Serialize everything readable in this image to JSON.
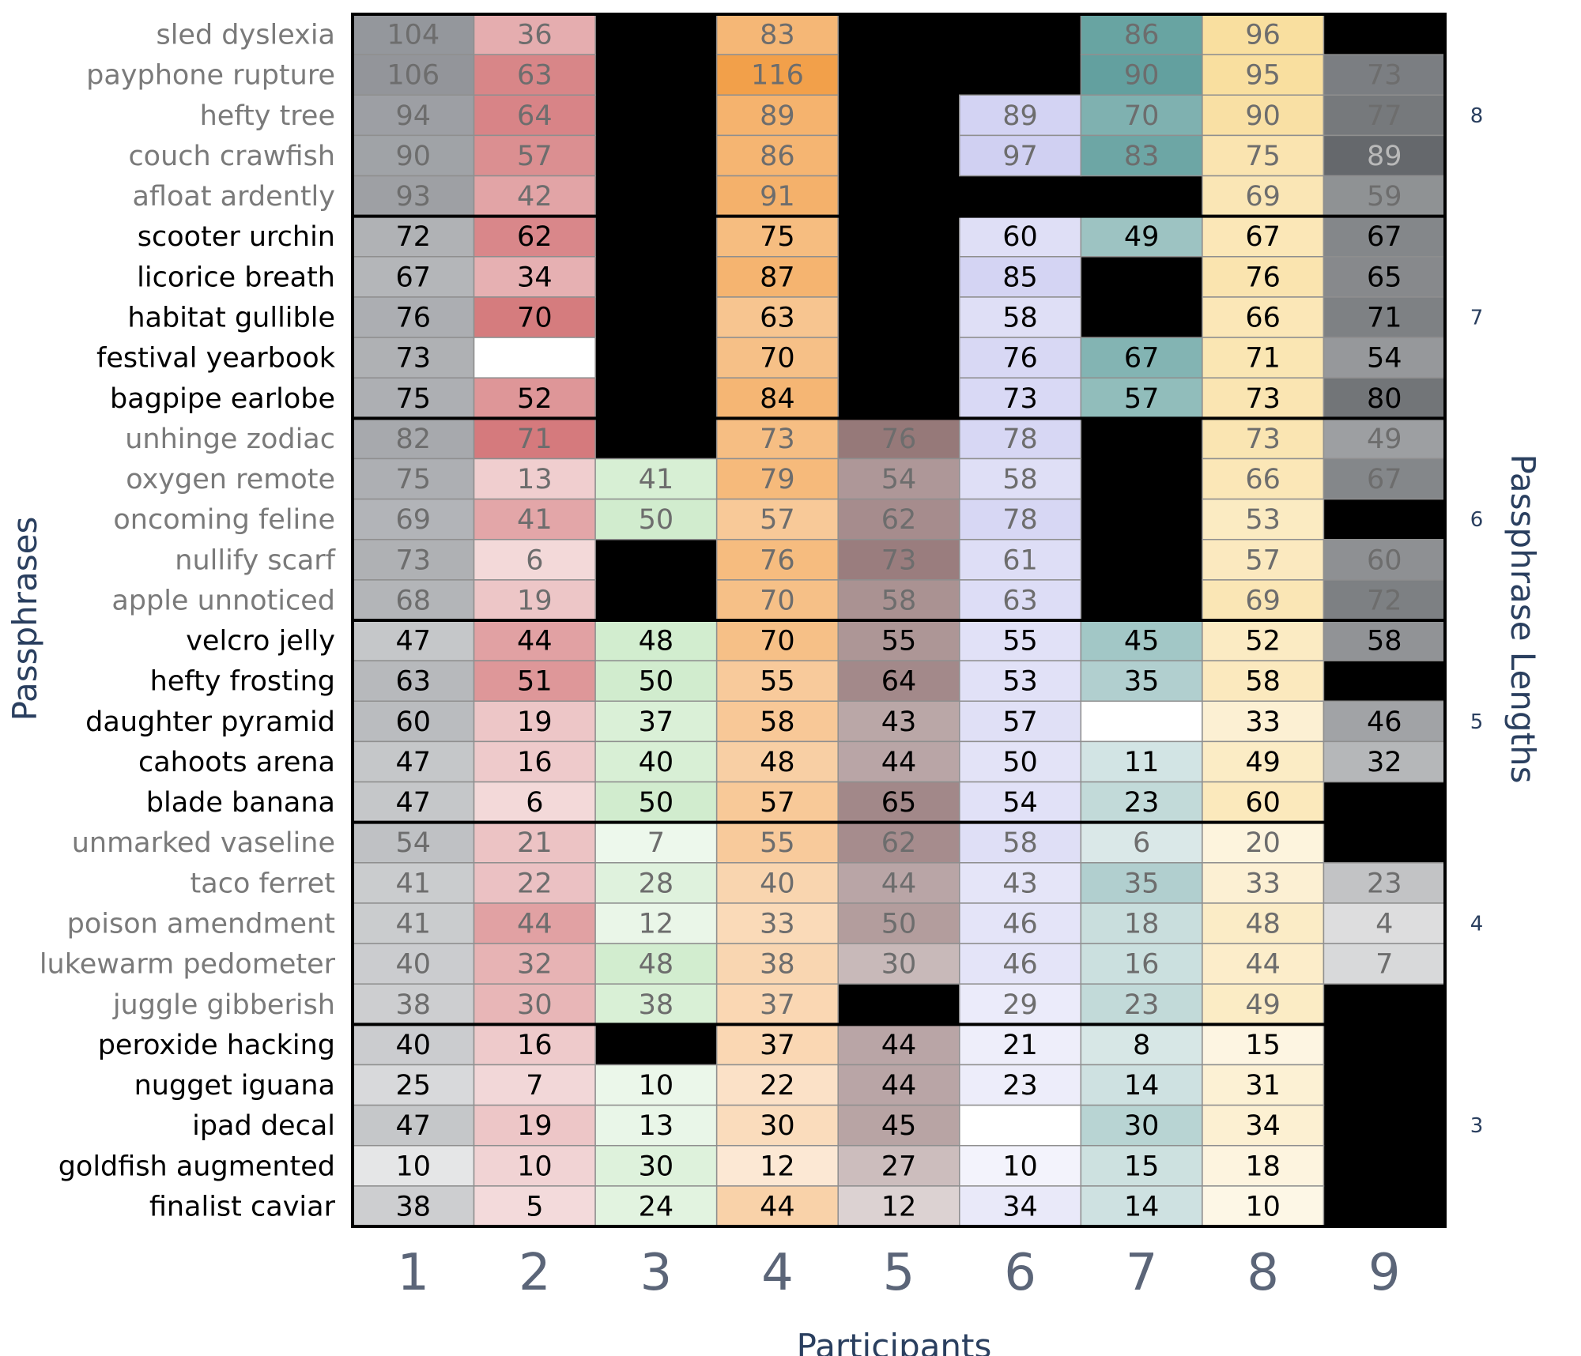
{
  "chart_data": {
    "type": "heatmap",
    "xlabel": "Participants",
    "ylabel": "Passphrases",
    "y2label": "Passphrase Lengths",
    "columns": [
      "1",
      "2",
      "3",
      "4",
      "5",
      "6",
      "7",
      "8",
      "9"
    ],
    "column_colors": [
      "#8a8d92",
      "#c0393d",
      "#a6dba0",
      "#f2a04a",
      "#6b4142",
      "#c8c8f0",
      "#3e8a88",
      "#f8d98e",
      "#3f4348"
    ],
    "missing_color": "#000000",
    "value_max": 116,
    "groups": [
      {
        "length": "8",
        "rows": [
          {
            "label": "sled dyslexia",
            "values": [
              104,
              36,
              null,
              83,
              null,
              null,
              86,
              96,
              null
            ]
          },
          {
            "label": "payphone rupture",
            "values": [
              106,
              63,
              null,
              116,
              null,
              null,
              90,
              95,
              73
            ]
          },
          {
            "label": "hefty tree",
            "values": [
              94,
              64,
              null,
              89,
              null,
              89,
              70,
              90,
              77
            ]
          },
          {
            "label": "couch crawfish",
            "values": [
              90,
              57,
              null,
              86,
              null,
              97,
              83,
              75,
              89
            ]
          },
          {
            "label": "afloat ardently",
            "values": [
              93,
              42,
              null,
              91,
              null,
              null,
              null,
              69,
              59
            ]
          }
        ]
      },
      {
        "length": "7",
        "rows": [
          {
            "label": "scooter urchin",
            "values": [
              72,
              62,
              null,
              75,
              null,
              60,
              49,
              67,
              67
            ]
          },
          {
            "label": "licorice breath",
            "values": [
              67,
              34,
              null,
              87,
              null,
              85,
              null,
              76,
              65
            ]
          },
          {
            "label": "habitat gullible",
            "values": [
              76,
              70,
              null,
              63,
              null,
              58,
              null,
              66,
              71
            ]
          },
          {
            "label": "festival yearbook",
            "values": [
              73,
              0,
              null,
              70,
              null,
              76,
              67,
              71,
              54
            ]
          },
          {
            "label": "bagpipe earlobe",
            "values": [
              75,
              52,
              null,
              84,
              null,
              73,
              57,
              73,
              80
            ]
          }
        ]
      },
      {
        "length": "6",
        "rows": [
          {
            "label": "unhinge zodiac",
            "values": [
              82,
              71,
              null,
              73,
              76,
              78,
              null,
              73,
              49
            ]
          },
          {
            "label": "oxygen remote",
            "values": [
              75,
              13,
              41,
              79,
              54,
              58,
              null,
              66,
              67
            ]
          },
          {
            "label": "oncoming feline",
            "values": [
              69,
              41,
              50,
              57,
              62,
              78,
              null,
              53,
              null
            ]
          },
          {
            "label": "nullify scarf",
            "values": [
              73,
              6,
              null,
              76,
              73,
              61,
              null,
              57,
              60
            ]
          },
          {
            "label": "apple unnoticed",
            "values": [
              68,
              19,
              null,
              70,
              58,
              63,
              null,
              69,
              72
            ]
          }
        ]
      },
      {
        "length": "5",
        "rows": [
          {
            "label": "velcro jelly",
            "values": [
              47,
              44,
              48,
              70,
              55,
              55,
              45,
              52,
              58
            ]
          },
          {
            "label": "hefty frosting",
            "values": [
              63,
              51,
              50,
              55,
              64,
              53,
              35,
              58,
              null
            ]
          },
          {
            "label": "daughter pyramid",
            "values": [
              60,
              19,
              37,
              58,
              43,
              57,
              0,
              33,
              46
            ]
          },
          {
            "label": "cahoots arena",
            "values": [
              47,
              16,
              40,
              48,
              44,
              50,
              11,
              49,
              32
            ]
          },
          {
            "label": "blade banana",
            "values": [
              47,
              6,
              50,
              57,
              65,
              54,
              23,
              60,
              null
            ]
          }
        ]
      },
      {
        "length": "4",
        "rows": [
          {
            "label": "unmarked vaseline",
            "values": [
              54,
              21,
              7,
              55,
              62,
              58,
              6,
              20,
              null
            ]
          },
          {
            "label": "taco ferret",
            "values": [
              41,
              22,
              28,
              40,
              44,
              43,
              35,
              33,
              23
            ]
          },
          {
            "label": "poison amendment",
            "values": [
              41,
              44,
              12,
              33,
              50,
              46,
              18,
              48,
              4
            ]
          },
          {
            "label": "lukewarm pedometer",
            "values": [
              40,
              32,
              48,
              38,
              30,
              46,
              16,
              44,
              7
            ]
          },
          {
            "label": "juggle gibberish",
            "values": [
              38,
              30,
              38,
              37,
              null,
              29,
              23,
              49,
              null
            ]
          }
        ]
      },
      {
        "length": "3",
        "rows": [
          {
            "label": "peroxide hacking",
            "values": [
              40,
              16,
              null,
              37,
              44,
              21,
              8,
              15,
              null
            ]
          },
          {
            "label": "nugget iguana",
            "values": [
              25,
              7,
              10,
              22,
              44,
              23,
              14,
              31,
              null
            ]
          },
          {
            "label": "ipad decal",
            "values": [
              47,
              19,
              13,
              30,
              45,
              0,
              30,
              34,
              null
            ]
          },
          {
            "label": "goldfish augmented",
            "values": [
              10,
              10,
              30,
              12,
              27,
              10,
              15,
              18,
              null
            ]
          },
          {
            "label": "finalist caviar",
            "values": [
              38,
              5,
              24,
              44,
              12,
              34,
              14,
              10,
              null
            ]
          }
        ]
      }
    ]
  }
}
